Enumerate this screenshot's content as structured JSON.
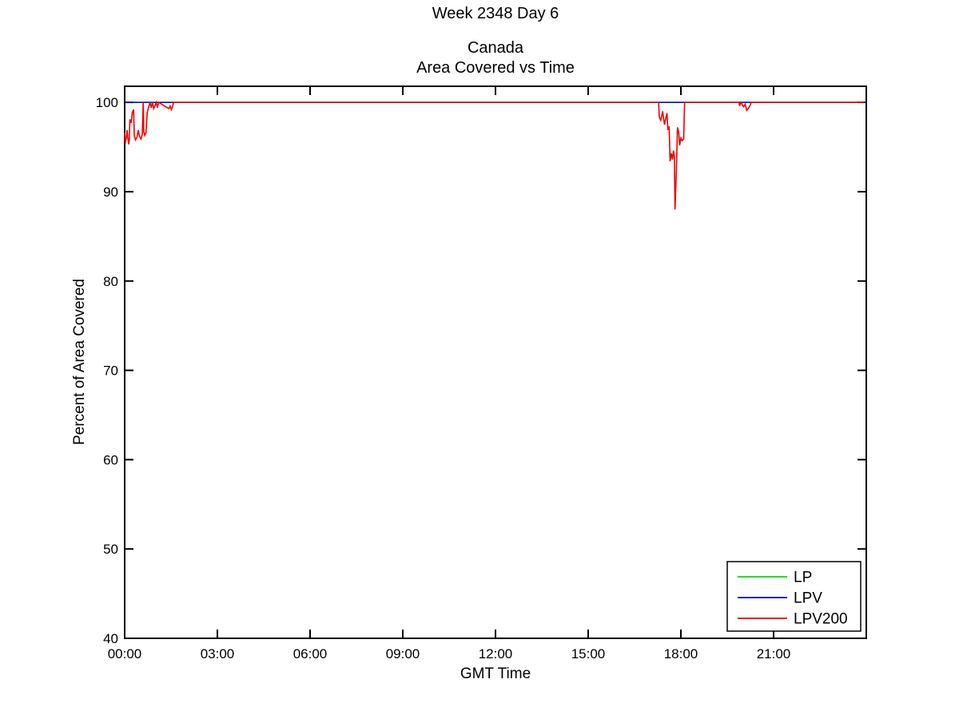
{
  "chart_data": {
    "type": "line",
    "suptitle": "Week 2348 Day 6",
    "title_line1": "Canada",
    "title_line2": "Area Covered vs Time",
    "xlabel": "GMT Time",
    "ylabel": "Percent of Area Covered",
    "xlim": [
      0,
      24
    ],
    "ylim": [
      40,
      101.8
    ],
    "x_tick_hours": [
      0,
      3,
      6,
      9,
      12,
      15,
      18,
      21
    ],
    "x_tick_labels": [
      "00:00",
      "03:00",
      "06:00",
      "09:00",
      "12:00",
      "15:00",
      "18:00",
      "21:00"
    ],
    "y_ticks": [
      40,
      50,
      60,
      70,
      80,
      90,
      100
    ],
    "grid": false,
    "axis_color": "#000000",
    "background": "#ffffff",
    "legend": {
      "position": "southeast",
      "entries": [
        {
          "label": "LP",
          "color": "#00DC00"
        },
        {
          "label": "LPV",
          "color": "#0000E0"
        },
        {
          "label": "LPV200",
          "color": "#EE0000"
        }
      ]
    },
    "series": [
      {
        "name": "LP",
        "color": "#00DC00",
        "points": [
          [
            0,
            100
          ],
          [
            24,
            100
          ]
        ]
      },
      {
        "name": "LPV",
        "color": "#0000E0",
        "points": [
          [
            0,
            100
          ],
          [
            24,
            100
          ]
        ]
      },
      {
        "name": "LPV200",
        "color": "#EE0000",
        "points": [
          [
            0.0,
            96.6
          ],
          [
            0.02,
            95.4
          ],
          [
            0.05,
            96.0
          ],
          [
            0.08,
            96.9
          ],
          [
            0.1,
            96.1
          ],
          [
            0.13,
            95.3
          ],
          [
            0.15,
            95.8
          ],
          [
            0.17,
            98.1
          ],
          [
            0.21,
            97.7
          ],
          [
            0.25,
            98.9
          ],
          [
            0.29,
            99.2
          ],
          [
            0.31,
            96.3
          ],
          [
            0.35,
            95.8
          ],
          [
            0.4,
            96.1
          ],
          [
            0.44,
            96.9
          ],
          [
            0.48,
            96.2
          ],
          [
            0.53,
            95.9
          ],
          [
            0.57,
            96.4
          ],
          [
            0.6,
            100
          ],
          [
            0.62,
            96.7
          ],
          [
            0.65,
            96.3
          ],
          [
            0.69,
            96.6
          ],
          [
            0.73,
            98.9
          ],
          [
            0.78,
            99.5
          ],
          [
            0.82,
            100
          ],
          [
            0.86,
            99.4
          ],
          [
            0.9,
            100
          ],
          [
            0.94,
            99.3
          ],
          [
            0.98,
            99.6
          ],
          [
            1.02,
            100
          ],
          [
            1.06,
            99.4
          ],
          [
            1.1,
            100
          ],
          [
            1.43,
            99.3
          ],
          [
            1.47,
            99.6
          ],
          [
            1.51,
            99.2
          ],
          [
            1.55,
            99.5
          ],
          [
            1.58,
            100
          ],
          [
            17.28,
            100
          ],
          [
            17.3,
            98.4
          ],
          [
            17.35,
            98.0
          ],
          [
            17.38,
            98.5
          ],
          [
            17.41,
            99.0
          ],
          [
            17.44,
            98.2
          ],
          [
            17.47,
            97.5
          ],
          [
            17.51,
            98.2
          ],
          [
            17.55,
            98.8
          ],
          [
            17.58,
            96.9
          ],
          [
            17.62,
            97.3
          ],
          [
            17.65,
            93.4
          ],
          [
            17.69,
            94.3
          ],
          [
            17.73,
            93.6
          ],
          [
            17.76,
            94.6
          ],
          [
            17.79,
            93.9
          ],
          [
            17.81,
            88.0
          ],
          [
            17.85,
            91.8
          ],
          [
            17.89,
            97.2
          ],
          [
            17.93,
            96.6
          ],
          [
            17.96,
            95.2
          ],
          [
            18.0,
            96.0
          ],
          [
            18.04,
            95.7
          ],
          [
            18.09,
            95.9
          ],
          [
            18.12,
            100
          ],
          [
            19.88,
            100
          ],
          [
            19.9,
            99.6
          ],
          [
            19.94,
            100
          ],
          [
            19.99,
            99.7
          ],
          [
            20.03,
            99.5
          ],
          [
            20.08,
            99.8
          ],
          [
            20.13,
            99.1
          ],
          [
            20.18,
            99.3
          ],
          [
            20.23,
            99.6
          ],
          [
            20.28,
            100
          ],
          [
            23.93,
            100
          ]
        ]
      }
    ]
  }
}
